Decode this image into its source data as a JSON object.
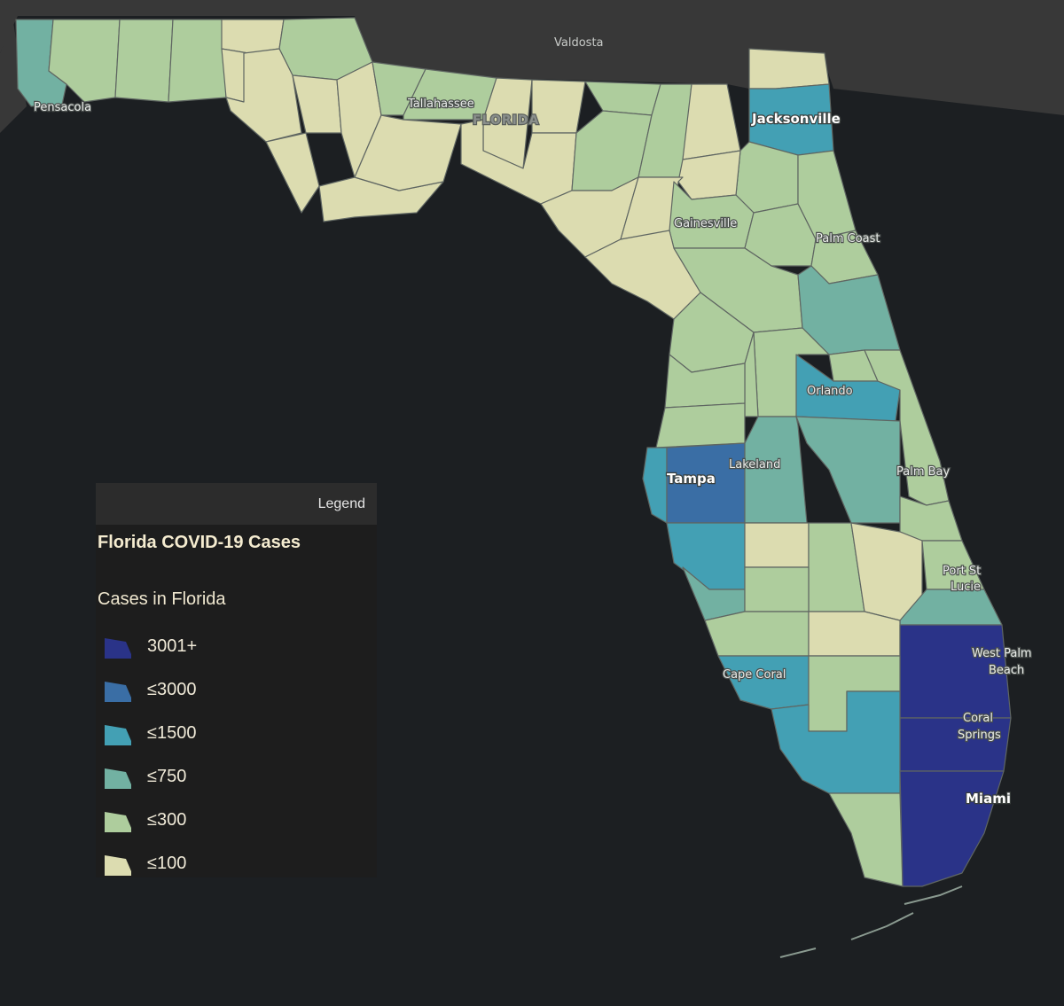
{
  "map": {
    "places": {
      "valdosta": "Valdosta",
      "pensacola": "Pensacola",
      "tallahassee": "Tallahassee",
      "state": "FLORIDA",
      "jacksonville": "Jacksonville",
      "gainesville": "Gainesville",
      "palm_coast": "Palm Coast",
      "orlando": "Orlando",
      "lakeland": "Lakeland",
      "tampa": "Tampa",
      "palm_bay": "Palm Bay",
      "port_st_lucie_1": "Port St",
      "port_st_lucie_2": "Lucie",
      "west_palm_beach_1": "West Palm",
      "west_palm_beach_2": "Beach",
      "cape_coral": "Cape Coral",
      "coral_springs_1": "Coral",
      "coral_springs_2": "Springs",
      "miami": "Miami"
    },
    "colors": {
      "background": "#1c1f22",
      "land_outside": "#3a3a3a",
      "class_3001_plus": "#2a3388",
      "class_le_3000": "#3a6ea5",
      "class_le_1500": "#43a0b4",
      "class_le_750": "#72b1a2",
      "class_le_300": "#aecd9d",
      "class_le_100": "#dcdcb0"
    }
  },
  "legend": {
    "header": "Legend",
    "title": "Florida COVID-19 Cases",
    "subtitle": "Cases in Florida",
    "items": [
      {
        "label": "3001+",
        "color": "#2a3388"
      },
      {
        "label": "≤3000",
        "color": "#3a6ea5"
      },
      {
        "label": "≤1500",
        "color": "#43a0b4"
      },
      {
        "label": "≤750",
        "color": "#72b1a2"
      },
      {
        "label": "≤300",
        "color": "#aecd9d"
      },
      {
        "label": "≤100",
        "color": "#dcdcb0"
      }
    ]
  }
}
